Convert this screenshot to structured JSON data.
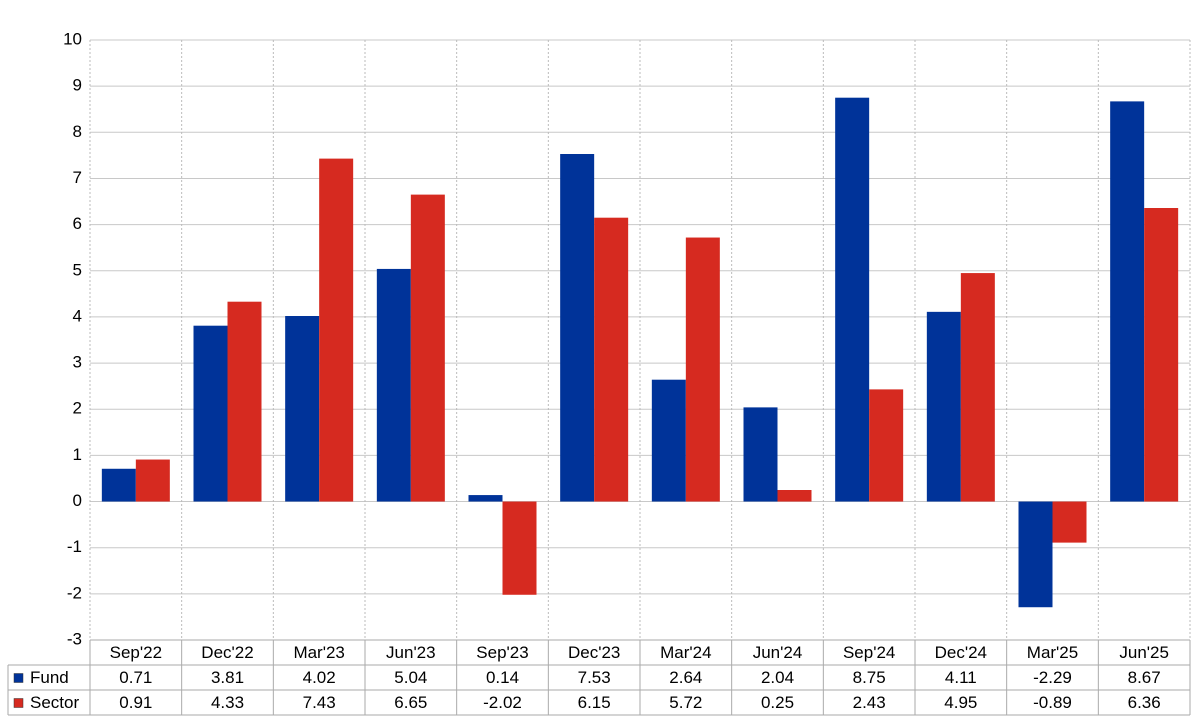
{
  "chart_data": {
    "type": "bar",
    "categories": [
      "Sep'22",
      "Dec'22",
      "Mar'23",
      "Jun'23",
      "Sep'23",
      "Dec'23",
      "Mar'24",
      "Jun'24",
      "Sep'24",
      "Dec'24",
      "Mar'25",
      "Jun'25"
    ],
    "series": [
      {
        "name": "Fund",
        "color": "#003399",
        "values": [
          0.71,
          3.81,
          4.02,
          5.04,
          0.14,
          7.53,
          2.64,
          2.04,
          8.75,
          4.11,
          -2.29,
          8.67
        ]
      },
      {
        "name": "Sector",
        "color": "#d62a20",
        "values": [
          0.91,
          4.33,
          7.43,
          6.65,
          -2.02,
          6.15,
          5.72,
          0.25,
          2.43,
          4.95,
          -0.89,
          6.36
        ]
      }
    ],
    "ylim": [
      -3,
      10
    ],
    "yticks": [
      -3,
      -2,
      -1,
      0,
      1,
      2,
      3,
      4,
      5,
      6,
      7,
      8,
      9,
      10
    ],
    "grid": true,
    "negative_color": "#ff0000"
  }
}
